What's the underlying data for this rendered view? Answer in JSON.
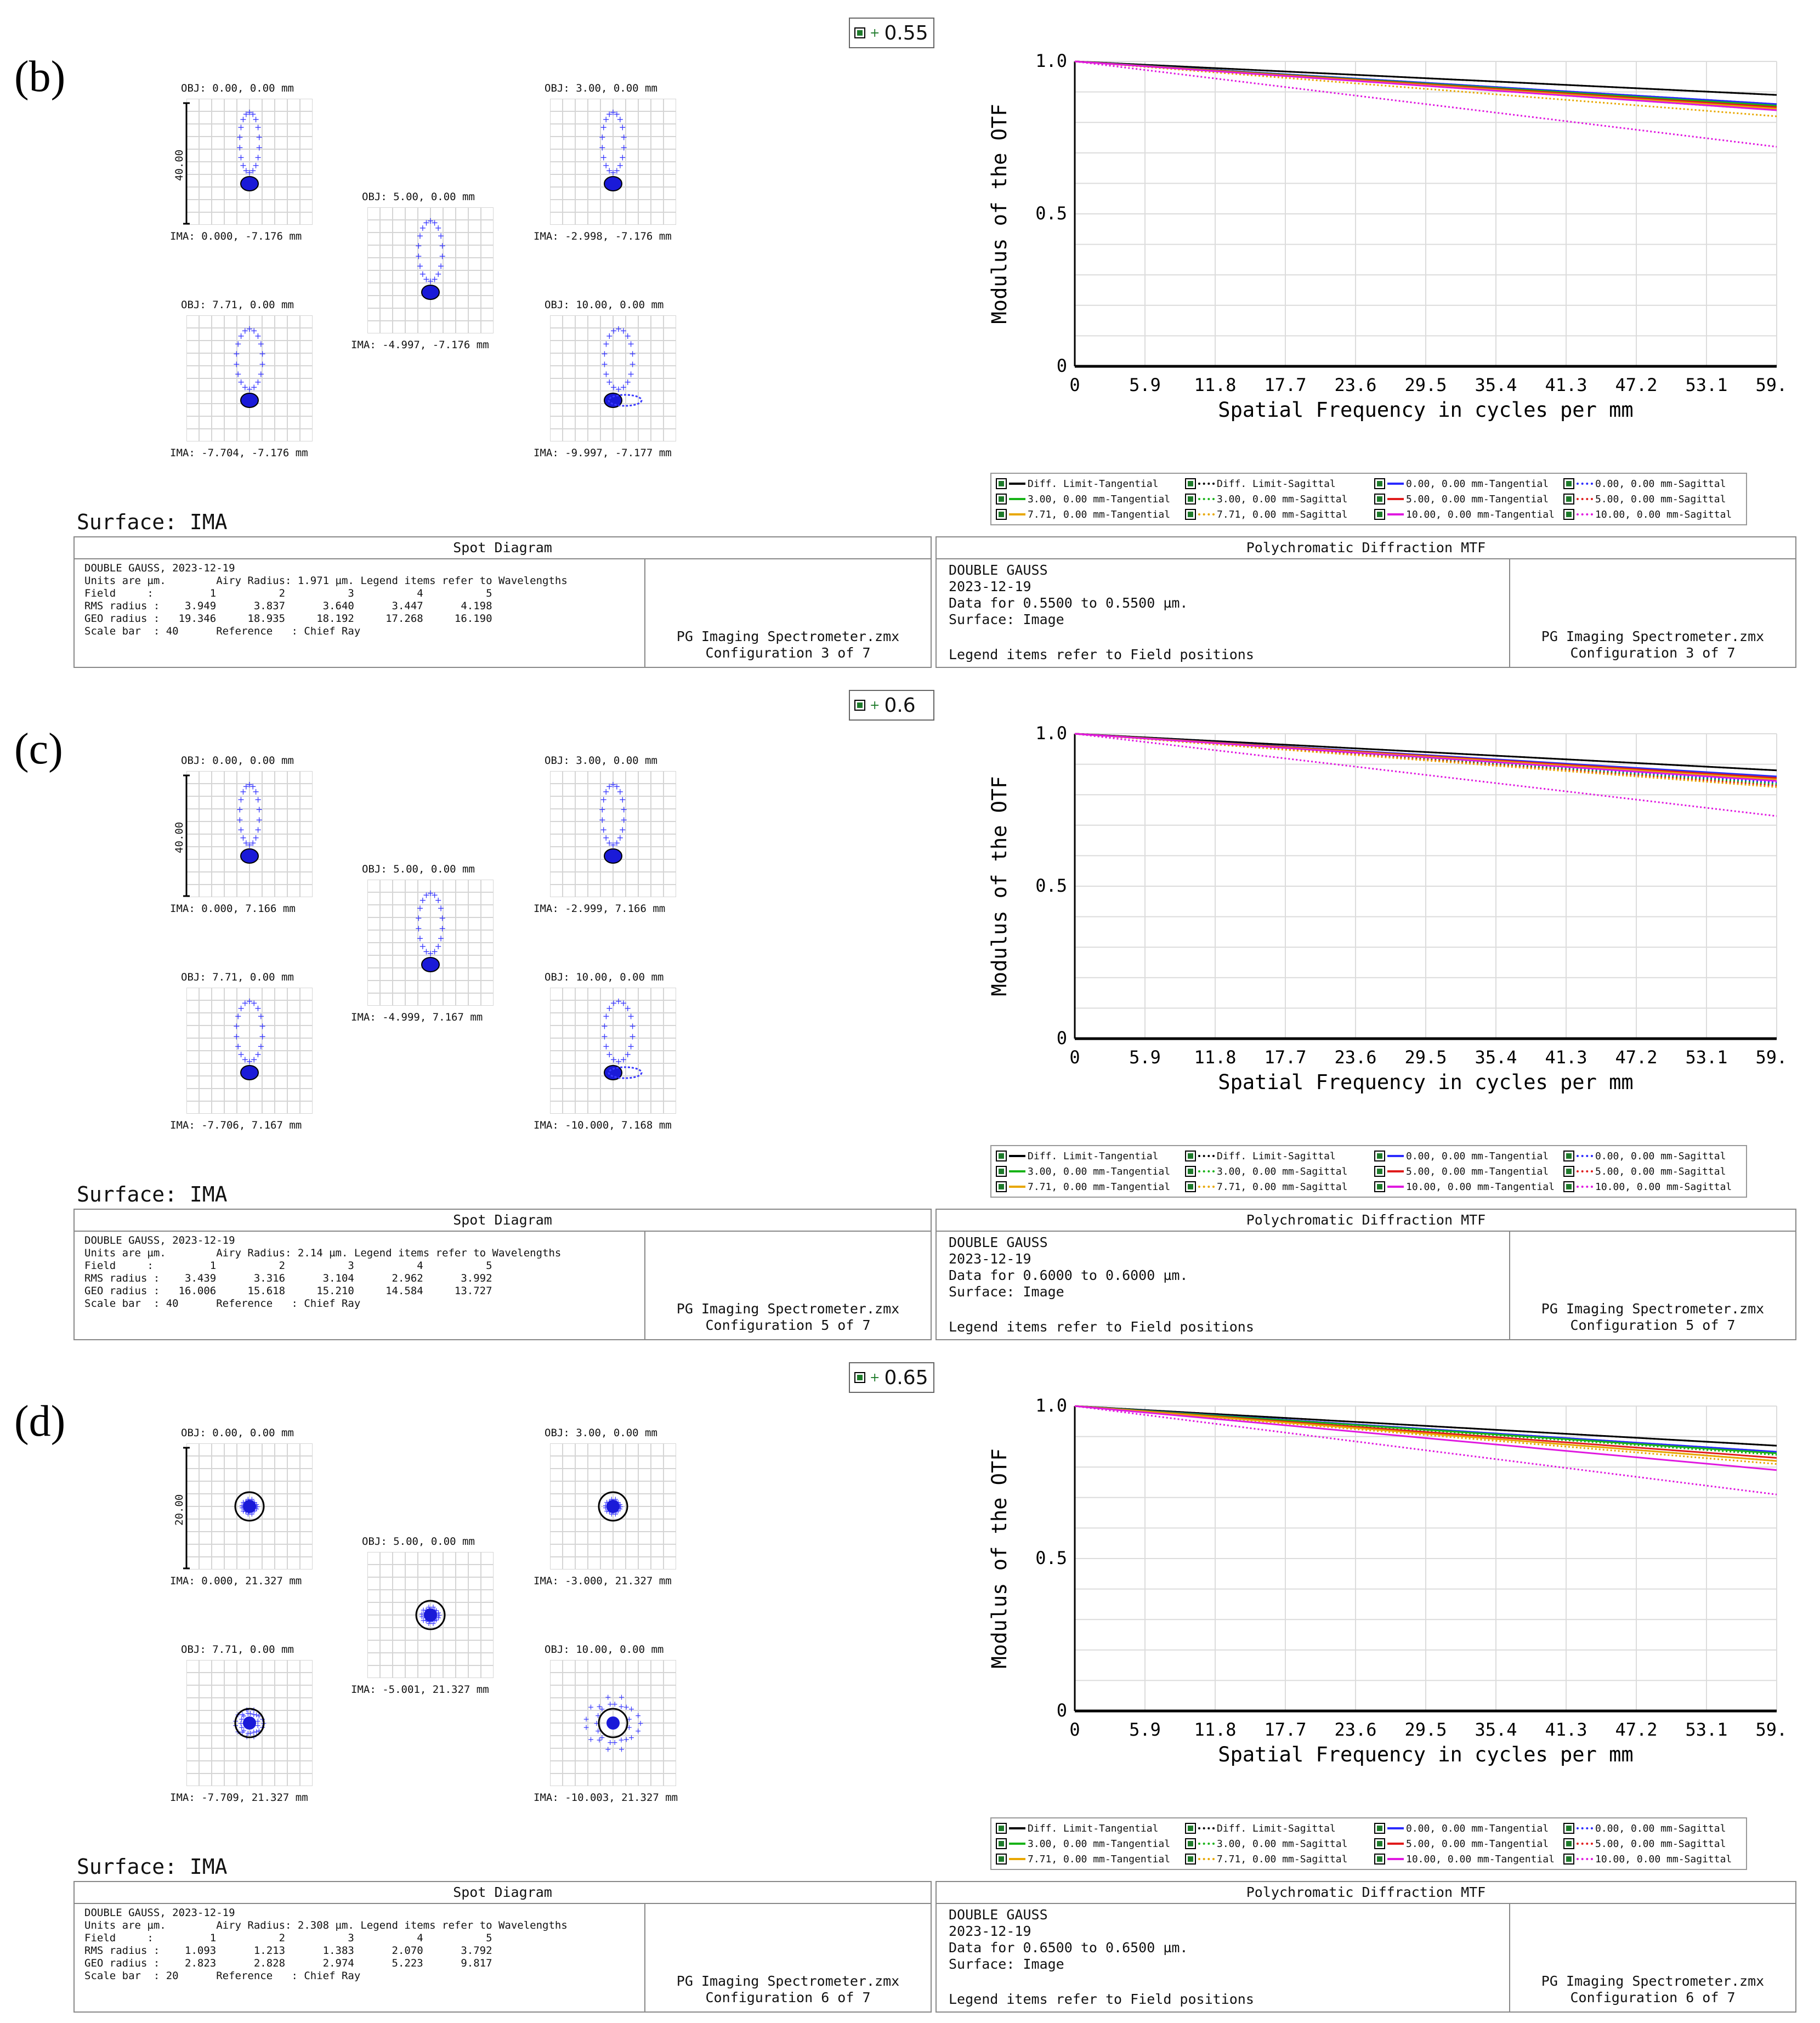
{
  "panels": [
    {
      "label": "(b)",
      "wavelength_badge": "0.55",
      "spot": {
        "fields": [
          {
            "obj": "OBJ: 0.00, 0.00 mm",
            "ima": "IMA: 0.000, -7.176 mm"
          },
          {
            "obj": "OBJ: 3.00, 0.00 mm",
            "ima": "IMA: -2.998, -7.176 mm"
          },
          {
            "obj": "OBJ: 5.00, 0.00 mm",
            "ima": "IMA: -4.997, -7.176 mm"
          },
          {
            "obj": "OBJ: 7.71, 0.00 mm",
            "ima": "IMA: -7.704, -7.176 mm"
          },
          {
            "obj": "OBJ: 10.00, 0.00 mm",
            "ima": "IMA: -9.997, -7.177 mm"
          }
        ],
        "scale_label": "40.00",
        "surface": "Surface: IMA",
        "box_title": "Spot Diagram",
        "info_lines": [
          "DOUBLE GAUSS, 2023-12-19",
          "Units are µm.        Airy Radius: 1.971 µm. Legend items refer to Wavelengths",
          "Field     :         1          2          3          4          5",
          "RMS radius :    3.949      3.837      3.640      3.447      4.198",
          "GEO radius :   19.346     18.935     18.192     17.268     16.190",
          "Scale bar  : 40      Reference   : Chief Ray"
        ],
        "file": "PG Imaging Spectrometer.zmx",
        "config": "Configuration 3 of 7"
      },
      "mtf": {
        "box_title": "Polychromatic Diffraction MTF",
        "info_lines": [
          "DOUBLE GAUSS",
          "2023-12-19",
          "Data for 0.5500 to 0.5500 µm.",
          "Surface: Image"
        ],
        "legend_note": "Legend items refer to Field positions",
        "file": "PG Imaging Spectrometer.zmx",
        "config": "Configuration 3 of 7"
      },
      "chart_data": {
        "type": "line",
        "title": "Polychromatic Diffraction MTF",
        "xlabel": "Spatial Frequency in cycles per mm",
        "ylabel": "Modulus of the OTF",
        "xlim": [
          0,
          59.0
        ],
        "ylim": [
          0,
          1.0
        ],
        "x_ticks": [
          "0",
          "5.9",
          "11.8",
          "17.7",
          "23.6",
          "29.5",
          "35.4",
          "41.3",
          "47.2",
          "53.1",
          "59.0"
        ],
        "y_ticks": [
          "0",
          "0.5",
          "1.0"
        ],
        "x": [
          0,
          59.0
        ],
        "series": [
          {
            "name": "Diff. Limit-Tangential",
            "color": "#000000",
            "dash": false,
            "values": [
              1.0,
              0.89
            ]
          },
          {
            "name": "Diff. Limit-Sagittal",
            "color": "#000000",
            "dash": true,
            "values": [
              1.0,
              0.89
            ]
          },
          {
            "name": "0.00, 0.00 mm-Tangential",
            "color": "#2a2aff",
            "dash": false,
            "values": [
              1.0,
              0.86
            ]
          },
          {
            "name": "0.00, 0.00 mm-Sagittal",
            "color": "#2a2aff",
            "dash": true,
            "values": [
              1.0,
              0.86
            ]
          },
          {
            "name": "3.00, 0.00 mm-Tangential",
            "color": "#17b317",
            "dash": false,
            "values": [
              1.0,
              0.855
            ]
          },
          {
            "name": "3.00, 0.00 mm-Sagittal",
            "color": "#17b317",
            "dash": true,
            "values": [
              1.0,
              0.85
            ]
          },
          {
            "name": "5.00, 0.00 mm-Tangential",
            "color": "#e01b1b",
            "dash": false,
            "values": [
              1.0,
              0.85
            ]
          },
          {
            "name": "5.00, 0.00 mm-Sagittal",
            "color": "#e01b1b",
            "dash": true,
            "values": [
              1.0,
              0.84
            ]
          },
          {
            "name": "7.71, 0.00 mm-Tangential",
            "color": "#e8a700",
            "dash": false,
            "values": [
              1.0,
              0.845
            ]
          },
          {
            "name": "7.71, 0.00 mm-Sagittal",
            "color": "#e8a700",
            "dash": true,
            "values": [
              1.0,
              0.82
            ]
          },
          {
            "name": "10.00, 0.00 mm-Tangential",
            "color": "#e018e0",
            "dash": false,
            "values": [
              1.0,
              0.84
            ]
          },
          {
            "name": "10.00, 0.00 mm-Sagittal",
            "color": "#e018e0",
            "dash": true,
            "values": [
              1.0,
              0.72
            ]
          }
        ]
      }
    },
    {
      "label": "(c)",
      "wavelength_badge": "0.6",
      "spot": {
        "fields": [
          {
            "obj": "OBJ: 0.00, 0.00 mm",
            "ima": "IMA: 0.000, 7.166 mm"
          },
          {
            "obj": "OBJ: 3.00, 0.00 mm",
            "ima": "IMA: -2.999, 7.166 mm"
          },
          {
            "obj": "OBJ: 5.00, 0.00 mm",
            "ima": "IMA: -4.999, 7.167 mm"
          },
          {
            "obj": "OBJ: 7.71, 0.00 mm",
            "ima": "IMA: -7.706, 7.167 mm"
          },
          {
            "obj": "OBJ: 10.00, 0.00 mm",
            "ima": "IMA: -10.000, 7.168 mm"
          }
        ],
        "scale_label": "40.00",
        "surface": "Surface: IMA",
        "box_title": "Spot Diagram",
        "info_lines": [
          "DOUBLE GAUSS, 2023-12-19",
          "Units are µm.        Airy Radius: 2.14 µm. Legend items refer to Wavelengths",
          "Field     :         1          2          3          4          5",
          "RMS radius :    3.439      3.316      3.104      2.962      3.992",
          "GEO radius :   16.006     15.618     15.210     14.584     13.727",
          "Scale bar  : 40      Reference   : Chief Ray"
        ],
        "file": "PG Imaging Spectrometer.zmx",
        "config": "Configuration 5 of 7"
      },
      "mtf": {
        "box_title": "Polychromatic Diffraction MTF",
        "info_lines": [
          "DOUBLE GAUSS",
          "2023-12-19",
          "Data for 0.6000 to 0.6000 µm.",
          "Surface: Image"
        ],
        "legend_note": "Legend items refer to Field positions",
        "file": "PG Imaging Spectrometer.zmx",
        "config": "Configuration 5 of 7"
      },
      "chart_data": {
        "type": "line",
        "title": "Polychromatic Diffraction MTF",
        "xlabel": "Spatial Frequency in cycles per mm",
        "ylabel": "Modulus of the OTF",
        "xlim": [
          0,
          59.0
        ],
        "ylim": [
          0,
          1.0
        ],
        "x_ticks": [
          "0",
          "5.9",
          "11.8",
          "17.7",
          "23.6",
          "29.5",
          "35.4",
          "41.3",
          "47.2",
          "53.1",
          "59.0"
        ],
        "y_ticks": [
          "0",
          "0.5",
          "1.0"
        ],
        "x": [
          0,
          59.0
        ],
        "series": [
          {
            "name": "Diff. Limit-Tangential",
            "color": "#000000",
            "dash": false,
            "values": [
              1.0,
              0.88
            ]
          },
          {
            "name": "Diff. Limit-Sagittal",
            "color": "#000000",
            "dash": true,
            "values": [
              1.0,
              0.88
            ]
          },
          {
            "name": "0.00, 0.00 mm-Tangential",
            "color": "#2a2aff",
            "dash": false,
            "values": [
              1.0,
              0.86
            ]
          },
          {
            "name": "0.00, 0.00 mm-Sagittal",
            "color": "#2a2aff",
            "dash": true,
            "values": [
              1.0,
              0.84
            ]
          },
          {
            "name": "3.00, 0.00 mm-Tangential",
            "color": "#17b317",
            "dash": false,
            "values": [
              1.0,
              0.855
            ]
          },
          {
            "name": "3.00, 0.00 mm-Sagittal",
            "color": "#17b317",
            "dash": true,
            "values": [
              1.0,
              0.835
            ]
          },
          {
            "name": "5.00, 0.00 mm-Tangential",
            "color": "#e01b1b",
            "dash": false,
            "values": [
              1.0,
              0.855
            ]
          },
          {
            "name": "5.00, 0.00 mm-Sagittal",
            "color": "#e01b1b",
            "dash": true,
            "values": [
              1.0,
              0.83
            ]
          },
          {
            "name": "7.71, 0.00 mm-Tangential",
            "color": "#e8a700",
            "dash": false,
            "values": [
              1.0,
              0.85
            ]
          },
          {
            "name": "7.71, 0.00 mm-Sagittal",
            "color": "#e8a700",
            "dash": true,
            "values": [
              1.0,
              0.825
            ]
          },
          {
            "name": "10.00, 0.00 mm-Tangential",
            "color": "#e018e0",
            "dash": false,
            "values": [
              1.0,
              0.845
            ]
          },
          {
            "name": "10.00, 0.00 mm-Sagittal",
            "color": "#e018e0",
            "dash": true,
            "values": [
              1.0,
              0.73
            ]
          }
        ]
      }
    },
    {
      "label": "(d)",
      "wavelength_badge": "0.65",
      "spot": {
        "fields": [
          {
            "obj": "OBJ: 0.00, 0.00 mm",
            "ima": "IMA: 0.000, 21.327 mm"
          },
          {
            "obj": "OBJ: 3.00, 0.00 mm",
            "ima": "IMA: -3.000, 21.327 mm"
          },
          {
            "obj": "OBJ: 5.00, 0.00 mm",
            "ima": "IMA: -5.001, 21.327 mm"
          },
          {
            "obj": "OBJ: 7.71, 0.00 mm",
            "ima": "IMA: -7.709, 21.327 mm"
          },
          {
            "obj": "OBJ: 10.00, 0.00 mm",
            "ima": "IMA: -10.003, 21.327 mm"
          }
        ],
        "scale_label": "20.00",
        "surface": "Surface: IMA",
        "box_title": "Spot Diagram",
        "info_lines": [
          "DOUBLE GAUSS, 2023-12-19",
          "Units are µm.        Airy Radius: 2.308 µm. Legend items refer to Wavelengths",
          "Field     :         1          2          3          4          5",
          "RMS radius :    1.093      1.213      1.383      2.070      3.792",
          "GEO radius :    2.823      2.828      2.974      5.223      9.817",
          "Scale bar  : 20      Reference   : Chief Ray"
        ],
        "file": "PG Imaging Spectrometer.zmx",
        "config": "Configuration 6 of 7"
      },
      "mtf": {
        "box_title": "Polychromatic Diffraction MTF",
        "info_lines": [
          "DOUBLE GAUSS",
          "2023-12-19",
          "Data for 0.6500 to 0.6500 µm.",
          "Surface: Image"
        ],
        "legend_note": "Legend items refer to Field positions",
        "file": "PG Imaging Spectrometer.zmx",
        "config": "Configuration 6 of 7"
      },
      "chart_data": {
        "type": "line",
        "title": "Polychromatic Diffraction MTF",
        "xlabel": "Spatial Frequency in cycles per mm",
        "ylabel": "Modulus of the OTF",
        "xlim": [
          0,
          59.0
        ],
        "ylim": [
          0,
          1.0
        ],
        "x_ticks": [
          "0",
          "5.9",
          "11.8",
          "17.7",
          "23.6",
          "29.5",
          "35.4",
          "41.3",
          "47.2",
          "53.1",
          "59.0"
        ],
        "y_ticks": [
          "0",
          "0.5",
          "1.0"
        ],
        "x": [
          0,
          59.0
        ],
        "series": [
          {
            "name": "Diff. Limit-Tangential",
            "color": "#000000",
            "dash": false,
            "values": [
              1.0,
              0.87
            ]
          },
          {
            "name": "Diff. Limit-Sagittal",
            "color": "#000000",
            "dash": true,
            "values": [
              1.0,
              0.87
            ]
          },
          {
            "name": "0.00, 0.00 mm-Tangential",
            "color": "#2a2aff",
            "dash": false,
            "values": [
              1.0,
              0.85
            ]
          },
          {
            "name": "0.00, 0.00 mm-Sagittal",
            "color": "#2a2aff",
            "dash": true,
            "values": [
              1.0,
              0.85
            ]
          },
          {
            "name": "3.00, 0.00 mm-Tangential",
            "color": "#17b317",
            "dash": false,
            "values": [
              1.0,
              0.845
            ]
          },
          {
            "name": "3.00, 0.00 mm-Sagittal",
            "color": "#17b317",
            "dash": true,
            "values": [
              1.0,
              0.84
            ]
          },
          {
            "name": "5.00, 0.00 mm-Tangential",
            "color": "#e01b1b",
            "dash": false,
            "values": [
              1.0,
              0.83
            ]
          },
          {
            "name": "5.00, 0.00 mm-Sagittal",
            "color": "#e01b1b",
            "dash": true,
            "values": [
              1.0,
              0.82
            ]
          },
          {
            "name": "7.71, 0.00 mm-Tangential",
            "color": "#e8a700",
            "dash": false,
            "values": [
              1.0,
              0.82
            ]
          },
          {
            "name": "7.71, 0.00 mm-Sagittal",
            "color": "#e8a700",
            "dash": true,
            "values": [
              1.0,
              0.81
            ]
          },
          {
            "name": "10.00, 0.00 mm-Tangential",
            "color": "#e018e0",
            "dash": false,
            "values": [
              1.0,
              0.79
            ]
          },
          {
            "name": "10.00, 0.00 mm-Sagittal",
            "color": "#e018e0",
            "dash": true,
            "values": [
              1.0,
              0.71
            ]
          }
        ]
      }
    }
  ]
}
